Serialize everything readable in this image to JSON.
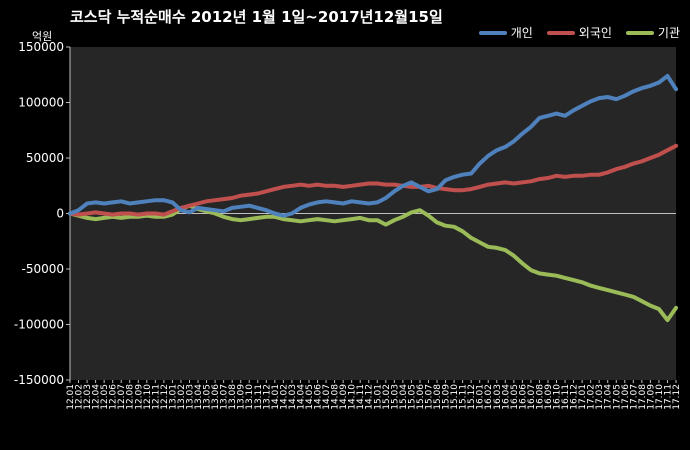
{
  "chart_data": {
    "type": "line",
    "title": "코스닥  누적순매수 2012년 1월 1일~2017년12월15일",
    "ylabel": "억원",
    "xlabel": "",
    "ylim": [
      -150000,
      150000
    ],
    "yticks": [
      150000,
      100000,
      50000,
      0,
      -50000,
      -100000,
      -150000
    ],
    "grid": false,
    "legend_position": "top-right",
    "categories": [
      "12.01",
      "12.02",
      "12.03",
      "12.04",
      "12.05",
      "12.06",
      "12.07",
      "12.08",
      "12.09",
      "12.10",
      "12.11",
      "12.12",
      "13.01",
      "13.02",
      "13.03",
      "13.04",
      "13.05",
      "13.06",
      "13.07",
      "13.08",
      "13.09",
      "13.10",
      "13.11",
      "13.12",
      "14.01",
      "14.02",
      "14.03",
      "14.04",
      "14.05",
      "14.06",
      "14.07",
      "14.08",
      "14.09",
      "14.10",
      "14.11",
      "14.12",
      "15.01",
      "15.02",
      "15.03",
      "15.04",
      "15.05",
      "15.06",
      "15.07",
      "15.08",
      "15.09",
      "15.10",
      "15.11",
      "15.12",
      "16.01",
      "16.02",
      "16.03",
      "16.04",
      "16.05",
      "16.06",
      "16.07",
      "16.08",
      "16.09",
      "16.10",
      "16.11",
      "16.12",
      "17.01",
      "17.02",
      "17.03",
      "17.04",
      "17.05",
      "17.06",
      "17.07",
      "17.08",
      "17.09",
      "17.10",
      "17.11",
      "17.12"
    ],
    "series": [
      {
        "name": "개인",
        "color": "#4F81BD",
        "values": [
          0,
          3000,
          9000,
          10000,
          9000,
          10000,
          11000,
          9000,
          10000,
          11000,
          12000,
          12000,
          10000,
          3000,
          1000,
          5000,
          4000,
          3000,
          2000,
          5000,
          6000,
          7000,
          5000,
          3000,
          0,
          -2000,
          0,
          5000,
          8000,
          10000,
          11000,
          10000,
          9000,
          11000,
          10000,
          9000,
          10000,
          14000,
          20000,
          25000,
          28000,
          24000,
          20000,
          22000,
          30000,
          33000,
          35000,
          36000,
          45000,
          52000,
          57000,
          60000,
          65000,
          72000,
          78000,
          86000,
          88000,
          90000,
          88000,
          93000,
          97000,
          101000,
          104000,
          105000,
          103000,
          106000,
          110000,
          113000,
          115000,
          118000,
          124000,
          112000
        ]
      },
      {
        "name": "외국인",
        "color": "#C0504D",
        "values": [
          0,
          -1000,
          0,
          1000,
          0,
          -1000,
          0,
          0,
          -1000,
          0,
          0,
          -1000,
          2000,
          5000,
          7000,
          9000,
          11000,
          12000,
          13000,
          14000,
          16000,
          17000,
          18000,
          20000,
          22000,
          24000,
          25000,
          26000,
          25000,
          26000,
          25000,
          25000,
          24000,
          25000,
          26000,
          27000,
          27000,
          26000,
          26000,
          25000,
          24000,
          24000,
          25000,
          23000,
          22000,
          21000,
          21000,
          22000,
          24000,
          26000,
          27000,
          28000,
          27000,
          28000,
          29000,
          31000,
          32000,
          34000,
          33000,
          34000,
          34000,
          35000,
          35000,
          37000,
          40000,
          42000,
          45000,
          47000,
          50000,
          53000,
          57000,
          61000
        ]
      },
      {
        "name": "기관",
        "color": "#9BBB59",
        "values": [
          0,
          -2000,
          -4000,
          -5000,
          -4000,
          -3000,
          -4000,
          -3000,
          -3000,
          -2000,
          -3000,
          -3000,
          -1000,
          4000,
          7000,
          4000,
          2000,
          0,
          -3000,
          -5000,
          -6000,
          -5000,
          -4000,
          -3000,
          -3000,
          -5000,
          -6000,
          -7000,
          -6000,
          -5000,
          -6000,
          -7000,
          -6000,
          -5000,
          -4000,
          -6000,
          -6000,
          -10000,
          -6000,
          -3000,
          1000,
          3000,
          -2000,
          -8000,
          -11000,
          -12000,
          -16000,
          -22000,
          -26000,
          -30000,
          -31000,
          -33000,
          -38000,
          -45000,
          -51000,
          -54000,
          -55000,
          -56000,
          -58000,
          -60000,
          -62000,
          -65000,
          -67000,
          -69000,
          -71000,
          -73000,
          -75000,
          -79000,
          -83000,
          -86000,
          -96000,
          -85000
        ]
      }
    ]
  }
}
